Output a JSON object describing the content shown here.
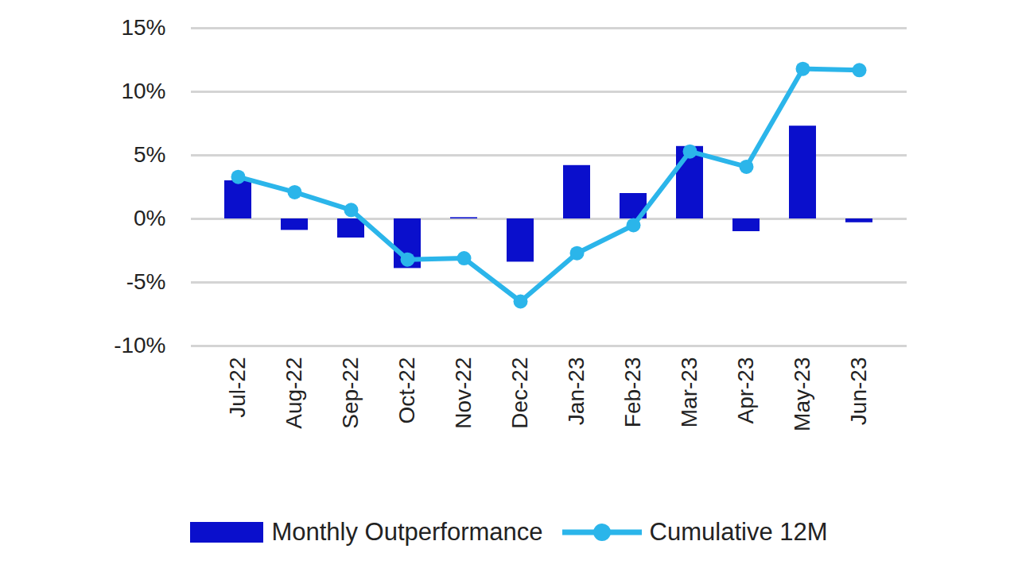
{
  "chart_data": {
    "type": "bar",
    "categories": [
      "Jul-22",
      "Aug-22",
      "Sep-22",
      "Oct-22",
      "Nov-22",
      "Dec-22",
      "Jan-23",
      "Feb-23",
      "Mar-23",
      "Apr-23",
      "May-23",
      "Jun-23"
    ],
    "series": [
      {
        "name": "Monthly Outperformance",
        "type": "bar",
        "color": "#0a0fcc",
        "values": [
          3.0,
          -0.9,
          -1.5,
          -3.9,
          0.1,
          -3.4,
          4.2,
          2.0,
          5.7,
          -1.0,
          7.3,
          -0.3
        ]
      },
      {
        "name": "Cumulative 12M",
        "type": "line",
        "marker": "circle",
        "color": "#2bb5ea",
        "values": [
          3.3,
          2.1,
          0.7,
          -3.2,
          -3.1,
          -6.5,
          -2.7,
          -0.5,
          5.3,
          4.1,
          11.8,
          11.7
        ]
      }
    ],
    "ylim": [
      -10,
      15
    ],
    "yticks": [
      {
        "value": -10,
        "label": "-10%"
      },
      {
        "value": -5,
        "label": "-5%"
      },
      {
        "value": 0,
        "label": "0%"
      },
      {
        "value": 5,
        "label": "5%"
      },
      {
        "value": 10,
        "label": "10%"
      },
      {
        "value": 15,
        "label": "15%"
      }
    ],
    "grid": true,
    "legend": "bottom"
  }
}
